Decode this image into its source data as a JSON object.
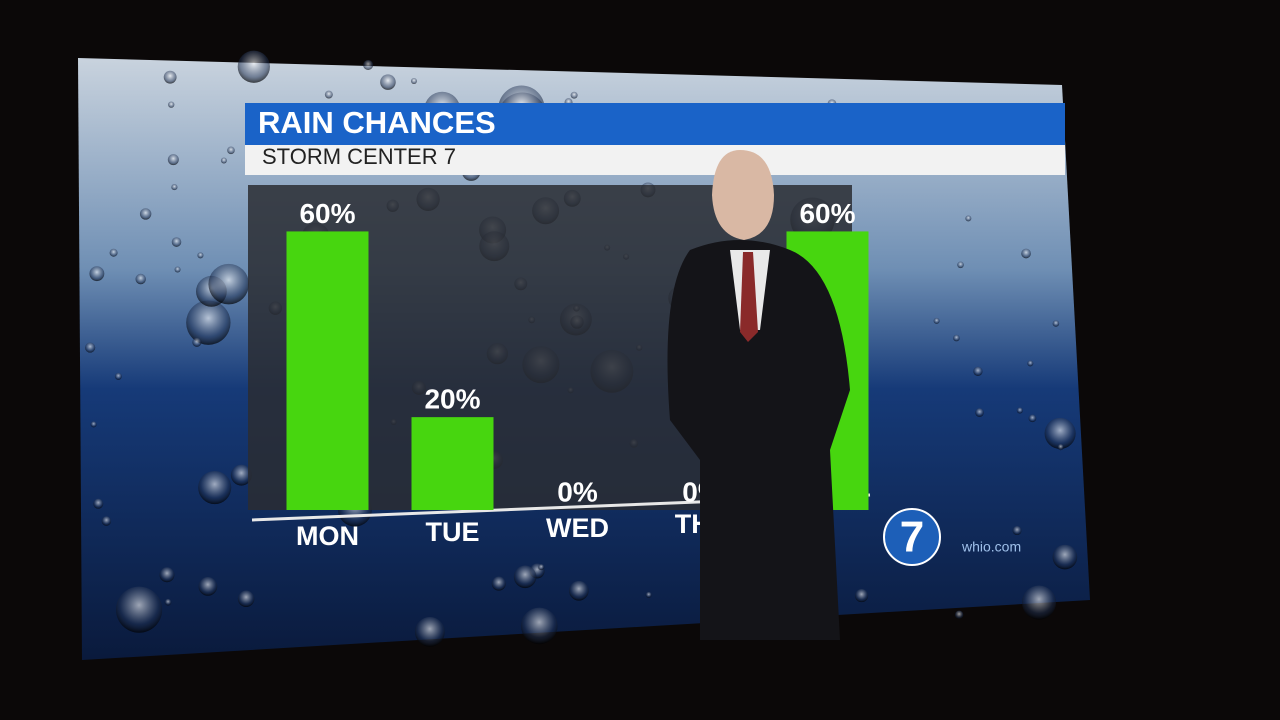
{
  "chart_data": {
    "type": "bar",
    "title": "RAIN CHANCES",
    "subtitle": "STORM CENTER 7",
    "categories": [
      "MON",
      "TUE",
      "WED",
      "THU",
      null
    ],
    "values": [
      60,
      20,
      0,
      0,
      60
    ],
    "value_labels": [
      "60%",
      "20%",
      "0%",
      "0%",
      "60%"
    ],
    "color": "#47d60f",
    "ylim": [
      0,
      70
    ]
  },
  "branding": {
    "logo": "7",
    "url": "whio.com"
  }
}
